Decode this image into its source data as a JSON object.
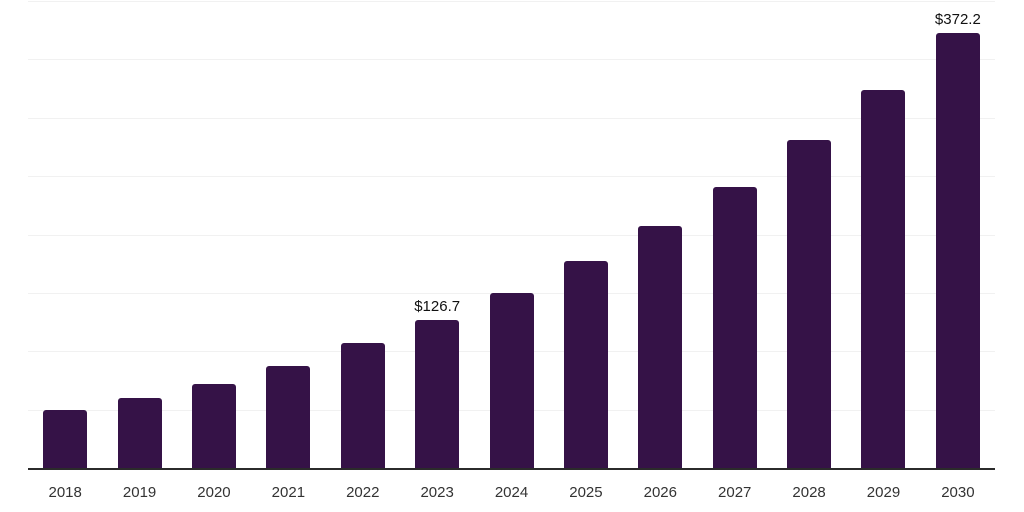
{
  "chart_data": {
    "type": "bar",
    "title": "",
    "xlabel": "",
    "ylabel": "",
    "categories": [
      "2018",
      "2019",
      "2020",
      "2021",
      "2022",
      "2023",
      "2024",
      "2025",
      "2026",
      "2027",
      "2028",
      "2029",
      "2030"
    ],
    "values": [
      50,
      60,
      72,
      87,
      107,
      126.7,
      150,
      177,
      207,
      241,
      281,
      324,
      372.2
    ],
    "data_labels": [
      null,
      null,
      null,
      null,
      null,
      "$126.7",
      null,
      null,
      null,
      null,
      null,
      null,
      "$372.2"
    ],
    "ylim": [
      0,
      400
    ],
    "gridline_interval": 50,
    "grid": "horizontal-only",
    "legend": "none",
    "colors": {
      "bar": "#351247",
      "gridline": "#f1f1f1",
      "axis_line": "#2b2b2b",
      "tick_label": "#333333",
      "data_label": "#111111",
      "background": "#ffffff"
    }
  }
}
